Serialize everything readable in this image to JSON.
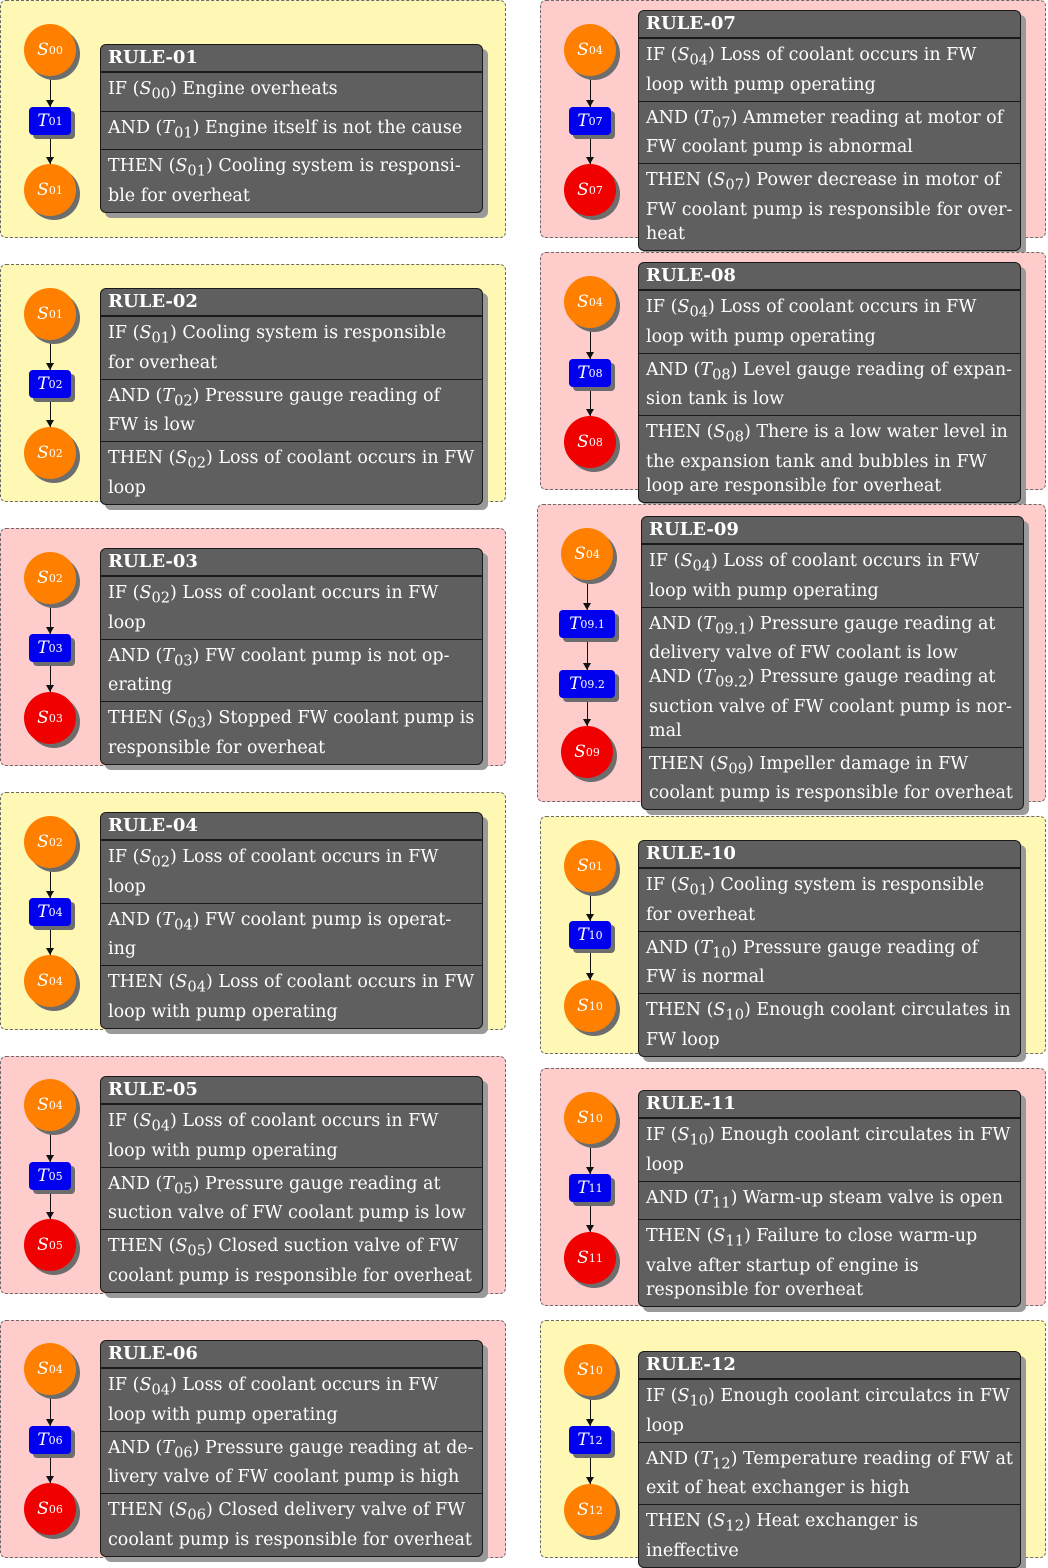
{
  "rules": [
    {
      "id": "RULE-01",
      "color": "yellow",
      "nodes": [
        [
          "S",
          "00",
          "orange"
        ],
        [
          "T",
          "01",
          "blue"
        ],
        [
          "S",
          "01",
          "orange"
        ]
      ],
      "clauses": [
        [
          "IF",
          "S",
          "00",
          "Engine overheats"
        ],
        [
          "AND",
          "T",
          "01",
          "Engine itself is not the cause"
        ],
        [
          "THEN",
          "S",
          "01",
          "Cooling system is responsi-ble for overheat"
        ]
      ]
    },
    {
      "id": "RULE-02",
      "color": "yellow",
      "nodes": [
        [
          "S",
          "01",
          "orange"
        ],
        [
          "T",
          "02",
          "blue"
        ],
        [
          "S",
          "02",
          "orange"
        ]
      ],
      "clauses": [
        [
          "IF",
          "S",
          "01",
          "Cooling system is responsible for overheat"
        ],
        [
          "AND",
          "T",
          "02",
          "Pressure gauge reading of FW is low"
        ],
        [
          "THEN",
          "S",
          "02",
          "Loss of coolant occurs in FW loop"
        ]
      ]
    },
    {
      "id": "RULE-03",
      "color": "pink",
      "nodes": [
        [
          "S",
          "02",
          "orange"
        ],
        [
          "T",
          "03",
          "blue"
        ],
        [
          "S",
          "03",
          "red"
        ]
      ],
      "clauses": [
        [
          "IF",
          "S",
          "02",
          "Loss of coolant occurs in FW loop"
        ],
        [
          "AND",
          "T",
          "03",
          "FW coolant pump is not op-erating"
        ],
        [
          "THEN",
          "S",
          "03",
          "Stopped FW coolant pump is responsible for overheat"
        ]
      ]
    },
    {
      "id": "RULE-04",
      "color": "yellow",
      "nodes": [
        [
          "S",
          "02",
          "orange"
        ],
        [
          "T",
          "04",
          "blue"
        ],
        [
          "S",
          "04",
          "orange"
        ]
      ],
      "clauses": [
        [
          "IF",
          "S",
          "02",
          "Loss of coolant occurs in FW loop"
        ],
        [
          "AND",
          "T",
          "04",
          "FW coolant pump is operat-ing"
        ],
        [
          "THEN",
          "S",
          "04",
          "Loss of coolant occurs in FW loop with pump operating"
        ]
      ]
    },
    {
      "id": "RULE-05",
      "color": "pink",
      "nodes": [
        [
          "S",
          "04",
          "orange"
        ],
        [
          "T",
          "05",
          "blue"
        ],
        [
          "S",
          "05",
          "red"
        ]
      ],
      "clauses": [
        [
          "IF",
          "S",
          "04",
          "Loss of coolant occurs in FW loop with pump operating"
        ],
        [
          "AND",
          "T",
          "05",
          "Pressure gauge reading at suction valve of FW coolant pump is low"
        ],
        [
          "THEN",
          "S",
          "05",
          "Closed suction valve of FW coolant pump is responsible for overheat"
        ]
      ]
    },
    {
      "id": "RULE-06",
      "color": "pink",
      "nodes": [
        [
          "S",
          "04",
          "orange"
        ],
        [
          "T",
          "06",
          "blue"
        ],
        [
          "S",
          "06",
          "red"
        ]
      ],
      "clauses": [
        [
          "IF",
          "S",
          "04",
          "Loss of coolant occurs in FW loop with pump operating"
        ],
        [
          "AND",
          "T",
          "06",
          "Pressure gauge reading at de-livery valve of FW coolant pump is high"
        ],
        [
          "THEN",
          "S",
          "06",
          "Closed delivery valve of FW coolant pump is responsible for overheat"
        ]
      ]
    },
    {
      "id": "RULE-07",
      "color": "pink",
      "nodes": [
        [
          "S",
          "04",
          "orange"
        ],
        [
          "T",
          "07",
          "blue"
        ],
        [
          "S",
          "07",
          "red"
        ]
      ],
      "clauses": [
        [
          "IF",
          "S",
          "04",
          "Loss of coolant occurs in FW loop with pump operating"
        ],
        [
          "AND",
          "T",
          "07",
          "Ammeter reading at motor of FW coolant pump is abnormal"
        ],
        [
          "THEN",
          "S",
          "07",
          "Power decrease in motor of FW coolant pump is responsible for over-heat"
        ]
      ]
    },
    {
      "id": "RULE-08",
      "color": "pink",
      "nodes": [
        [
          "S",
          "04",
          "orange"
        ],
        [
          "T",
          "08",
          "blue"
        ],
        [
          "S",
          "08",
          "red"
        ]
      ],
      "clauses": [
        [
          "IF",
          "S",
          "04",
          "Loss of coolant occurs in FW loop with pump operating"
        ],
        [
          "AND",
          "T",
          "08",
          "Level gauge reading of expan-sion tank is low"
        ],
        [
          "THEN",
          "S",
          "08",
          "There is a low water level in the expansion tank and bubbles in FW loop are responsible for overheat"
        ]
      ]
    },
    {
      "id": "RULE-09",
      "color": "pink",
      "nodes": [
        [
          "S",
          "04",
          "orange"
        ],
        [
          "T",
          "09.1",
          "blue"
        ],
        [
          "T",
          "09.2",
          "blue"
        ],
        [
          "S",
          "09",
          "red"
        ]
      ],
      "clauses": [
        [
          "IF",
          "S",
          "04",
          "Loss of coolant occurs in FW loop with pump operating"
        ],
        [
          "AND",
          "T",
          "09.1",
          "Pressure gauge reading at delivery valve of FW coolant is low",
          "AND",
          "T",
          "09.2",
          "Pressure gauge reading at suction valve of FW coolant pump is nor-mal"
        ],
        [
          "THEN",
          "S",
          "09",
          "Impeller damage in FW coolant pump is responsible for overheat"
        ]
      ]
    },
    {
      "id": "RULE-10",
      "color": "yellow",
      "nodes": [
        [
          "S",
          "01",
          "orange"
        ],
        [
          "T",
          "10",
          "blue"
        ],
        [
          "S",
          "10",
          "orange"
        ]
      ],
      "clauses": [
        [
          "IF",
          "S",
          "01",
          "Cooling system is responsible for overheat"
        ],
        [
          "AND",
          "T",
          "10",
          "Pressure gauge reading of FW is normal"
        ],
        [
          "THEN",
          "S",
          "10",
          "Enough coolant circulates in FW loop"
        ]
      ]
    },
    {
      "id": "RULE-11",
      "color": "pink",
      "nodes": [
        [
          "S",
          "10",
          "orange"
        ],
        [
          "T",
          "11",
          "blue"
        ],
        [
          "S",
          "11",
          "red"
        ]
      ],
      "clauses": [
        [
          "IF",
          "S",
          "10",
          "Enough coolant circulates in FW loop"
        ],
        [
          "AND",
          "T",
          "11",
          "Warm-up steam valve is open"
        ],
        [
          "THEN",
          "S",
          "11",
          "Failure to close warm-up valve after startup of engine is responsible for overheat"
        ]
      ]
    },
    {
      "id": "RULE-12",
      "color": "yellow",
      "nodes": [
        [
          "S",
          "10",
          "orange"
        ],
        [
          "T",
          "12",
          "blue"
        ],
        [
          "S",
          "12",
          "orange"
        ]
      ],
      "clauses": [
        [
          "IF",
          "S",
          "10",
          "Enough coolant circulatcs in FW loop"
        ],
        [
          "AND",
          "T",
          "12",
          "Temperature reading of FW at exit of heat exchanger is high"
        ],
        [
          "THEN",
          "S",
          "12",
          "Heat exchanger is ineffective"
        ]
      ]
    }
  ]
}
